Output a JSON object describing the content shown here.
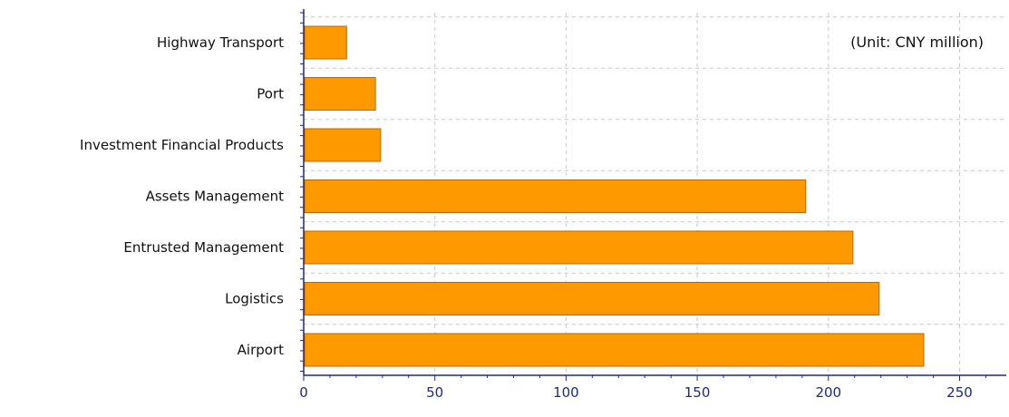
{
  "chart_data": {
    "type": "bar",
    "orientation": "horizontal",
    "categories": [
      "Highway Transport",
      "Port",
      "Investment Financial Products",
      "Assets Management",
      "Entrusted Management",
      "Logistics",
      "Airport"
    ],
    "values": [
      16,
      27,
      29,
      191,
      209,
      219,
      236
    ],
    "annotation": "(Unit: CNY million)",
    "xlabel": "",
    "ylabel": "",
    "xlim": [
      0,
      265
    ],
    "xticks": [
      0,
      50,
      100,
      150,
      200,
      250
    ],
    "grid": true,
    "bar_color": "#ff9900"
  }
}
